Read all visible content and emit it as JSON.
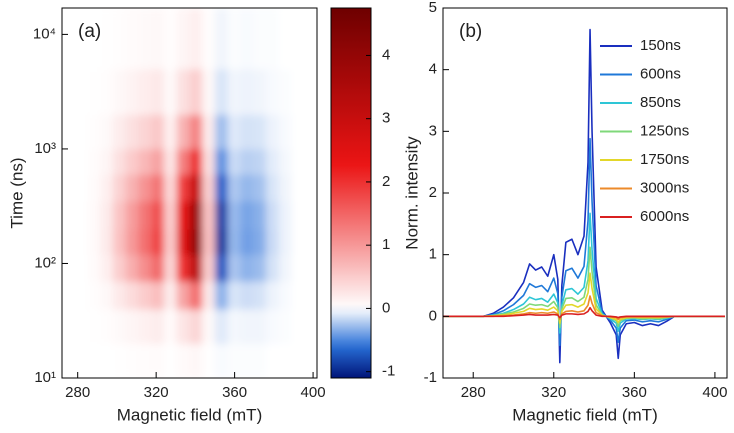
{
  "chart_data": [
    {
      "type": "heatmap",
      "annotation": "(a)",
      "xlabel": "Magnetic field (mT)",
      "ylabel": "Time (ns)",
      "xlim": [
        272,
        402
      ],
      "xticks": [
        280,
        320,
        360,
        400
      ],
      "ylim": [
        10,
        17000
      ],
      "yscale": "log",
      "yticks": [
        {
          "value": 10,
          "label": "10¹"
        },
        {
          "value": 100,
          "label": "10²"
        },
        {
          "value": 1000,
          "label": "10³"
        },
        {
          "value": 10000,
          "label": "10⁴"
        }
      ],
      "xbins": [
        272,
        278.5,
        285,
        291.5,
        298,
        304.5,
        311,
        317.5,
        324,
        330.5,
        337,
        343.5,
        350,
        356.5,
        363,
        369.5,
        376,
        382.5,
        389,
        395.5,
        402
      ],
      "ybins": [
        10,
        20,
        40,
        70,
        120,
        200,
        350,
        600,
        1000,
        2000,
        5000,
        17000
      ],
      "z": [
        [
          0,
          0,
          0,
          0,
          0.01,
          0.02,
          0.03,
          0.04,
          0.01,
          0.05,
          0.08,
          0.01,
          -0.02,
          -0.01,
          -0.01,
          -0.01,
          0,
          0,
          0,
          0
        ],
        [
          0,
          0,
          0.01,
          0.02,
          0.06,
          0.1,
          0.14,
          0.18,
          0.05,
          0.25,
          0.4,
          0.06,
          -0.09,
          -0.03,
          -0.04,
          -0.04,
          -0.02,
          -0.01,
          0,
          0
        ],
        [
          0,
          0,
          0.02,
          0.07,
          0.21,
          0.35,
          0.49,
          0.63,
          0.18,
          0.88,
          1.4,
          0.21,
          -0.32,
          -0.11,
          -0.14,
          -0.12,
          -0.05,
          -0.02,
          0,
          0
        ],
        [
          0,
          0,
          0.04,
          0.16,
          0.48,
          0.8,
          1.12,
          1.44,
          0.4,
          2,
          3.2,
          0.48,
          -0.72,
          -0.24,
          -0.32,
          -0.28,
          -0.12,
          -0.04,
          0,
          0
        ],
        [
          0,
          0,
          0.05,
          0.2,
          0.6,
          1,
          1.4,
          1.8,
          0.5,
          2.5,
          4,
          0.6,
          -0.9,
          -0.3,
          -0.4,
          -0.35,
          -0.15,
          -0.05,
          0,
          0
        ],
        [
          0,
          0,
          0.05,
          0.19,
          0.57,
          0.95,
          1.33,
          1.71,
          0.48,
          2.38,
          3.8,
          0.57,
          -0.86,
          -0.29,
          -0.38,
          -0.33,
          -0.14,
          -0.05,
          0,
          0
        ],
        [
          0,
          0,
          0.04,
          0.15,
          0.45,
          0.75,
          1.05,
          1.35,
          0.38,
          1.88,
          3,
          0.45,
          -0.68,
          -0.23,
          -0.3,
          -0.26,
          -0.11,
          -0.04,
          0,
          0
        ],
        [
          0,
          0,
          0.03,
          0.1,
          0.3,
          0.5,
          0.7,
          0.9,
          0.25,
          1.25,
          2,
          0.3,
          -0.45,
          -0.15,
          -0.2,
          -0.18,
          -0.08,
          -0.03,
          0,
          0
        ],
        [
          0,
          0,
          0.02,
          0.06,
          0.18,
          0.3,
          0.42,
          0.54,
          0.15,
          0.75,
          1.2,
          0.18,
          -0.27,
          -0.09,
          -0.12,
          -0.11,
          -0.05,
          -0.02,
          0,
          0
        ],
        [
          0,
          0,
          0.01,
          0.02,
          0.07,
          0.12,
          0.17,
          0.22,
          0.06,
          0.3,
          0.48,
          0.07,
          -0.11,
          -0.04,
          -0.05,
          -0.04,
          -0.02,
          -0.01,
          0,
          0
        ],
        [
          0,
          0,
          0,
          0.01,
          0.02,
          0.04,
          0.06,
          0.07,
          0.02,
          0.1,
          0.16,
          0.02,
          -0.04,
          -0.01,
          -0.02,
          -0.01,
          -0.01,
          0,
          0,
          0
        ]
      ],
      "zlim": [
        -1.1,
        4.75
      ],
      "zticks": [
        -1,
        0,
        1,
        2,
        3,
        4
      ]
    },
    {
      "type": "line",
      "annotation": "(b)",
      "xlabel": "Magnetic field (mT)",
      "ylabel": "Norm. intensity",
      "xlim": [
        265,
        406
      ],
      "xticks": [
        280,
        320,
        360,
        400
      ],
      "ylim": [
        -1,
        5
      ],
      "yticks": [
        -1,
        0,
        1,
        2,
        3,
        4,
        5
      ],
      "legend": "upper right",
      "x": [
        265,
        285,
        290,
        295,
        300,
        305,
        308,
        311,
        314,
        317,
        320,
        322,
        323,
        324,
        326,
        329,
        332,
        335,
        337,
        338,
        339,
        341,
        344,
        348,
        351,
        352,
        353,
        356,
        360,
        364,
        368,
        372,
        376,
        380,
        405
      ],
      "series": [
        {
          "name": "150ns",
          "color": "#1a2fbf",
          "values": [
            0,
            0,
            0.05,
            0.15,
            0.3,
            0.55,
            0.85,
            0.75,
            0.8,
            0.65,
            1.0,
            0.6,
            -0.75,
            0.5,
            1.2,
            1.25,
            1.0,
            1.3,
            2.5,
            4.65,
            3.0,
            0.8,
            0.1,
            -0.1,
            -0.3,
            -0.68,
            -0.3,
            -0.12,
            -0.1,
            -0.15,
            -0.12,
            -0.15,
            -0.08,
            0,
            0
          ]
        },
        {
          "name": "600ns",
          "color": "#1f78d8",
          "values": [
            0,
            0,
            0.03,
            0.09,
            0.19,
            0.34,
            0.53,
            0.47,
            0.5,
            0.4,
            0.62,
            0.37,
            -0.47,
            0.31,
            0.74,
            0.78,
            0.62,
            0.81,
            1.55,
            2.88,
            1.86,
            0.5,
            0.06,
            -0.06,
            -0.19,
            -0.42,
            -0.19,
            -0.07,
            -0.06,
            -0.09,
            -0.07,
            -0.09,
            -0.05,
            0,
            0
          ]
        },
        {
          "name": "850ns",
          "color": "#2ec6d6",
          "values": [
            0,
            0,
            0.02,
            0.05,
            0.11,
            0.2,
            0.31,
            0.27,
            0.29,
            0.23,
            0.36,
            0.22,
            -0.27,
            0.18,
            0.43,
            0.45,
            0.36,
            0.47,
            0.9,
            1.67,
            1.08,
            0.29,
            0.04,
            -0.04,
            -0.11,
            -0.24,
            -0.11,
            -0.04,
            -0.04,
            -0.05,
            -0.04,
            -0.05,
            -0.03,
            0,
            0
          ]
        },
        {
          "name": "1250ns",
          "color": "#7fd87a",
          "values": [
            0,
            0,
            0.01,
            0.04,
            0.07,
            0.13,
            0.2,
            0.18,
            0.19,
            0.16,
            0.24,
            0.14,
            -0.18,
            0.12,
            0.29,
            0.3,
            0.24,
            0.31,
            0.6,
            1.12,
            0.72,
            0.19,
            0.02,
            -0.02,
            -0.07,
            -0.16,
            -0.07,
            -0.03,
            -0.02,
            -0.04,
            -0.03,
            -0.04,
            -0.02,
            0,
            0
          ]
        },
        {
          "name": "1750ns",
          "color": "#e3d72a",
          "values": [
            0,
            0,
            0.01,
            0.02,
            0.05,
            0.08,
            0.13,
            0.11,
            0.12,
            0.1,
            0.15,
            0.09,
            -0.11,
            0.08,
            0.18,
            0.19,
            0.15,
            0.2,
            0.38,
            0.7,
            0.45,
            0.12,
            0.02,
            -0.02,
            -0.05,
            -0.1,
            -0.05,
            -0.02,
            -0.02,
            -0.02,
            -0.02,
            -0.02,
            -0.01,
            0,
            0
          ]
        },
        {
          "name": "3000ns",
          "color": "#ec8a2a",
          "values": [
            0,
            0,
            0,
            0.01,
            0.02,
            0.04,
            0.06,
            0.05,
            0.06,
            0.05,
            0.07,
            0.04,
            -0.05,
            0.04,
            0.08,
            0.09,
            0.07,
            0.09,
            0.18,
            0.33,
            0.21,
            0.06,
            0.01,
            -0.01,
            -0.02,
            -0.05,
            -0.02,
            -0.01,
            -0.01,
            -0.01,
            -0.01,
            -0.01,
            -0.01,
            0,
            0
          ]
        },
        {
          "name": "6000ns",
          "color": "#d92020",
          "values": [
            0,
            0,
            0,
            0,
            0.01,
            0.02,
            0.03,
            0.02,
            0.02,
            0.02,
            0.03,
            0.02,
            -0.02,
            0.02,
            0.04,
            0.04,
            0.03,
            0.04,
            0.08,
            0.14,
            0.09,
            0.02,
            0,
            0,
            -0.01,
            -0.02,
            -0.01,
            0,
            0,
            0,
            0,
            0,
            0,
            0,
            0
          ]
        }
      ]
    }
  ]
}
